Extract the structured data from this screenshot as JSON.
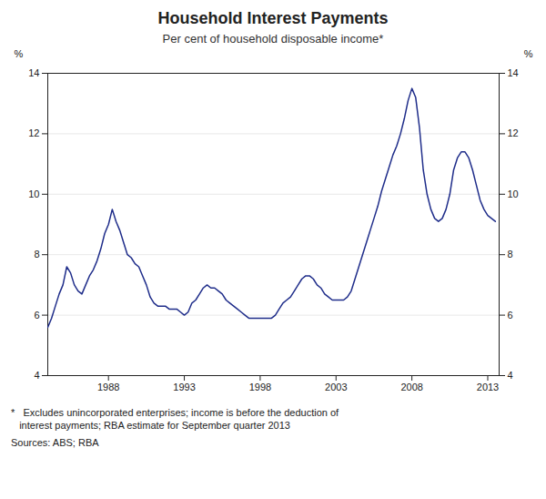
{
  "chart_data": {
    "type": "line",
    "title": "Household Interest Payments",
    "subtitle": "Per cent of household disposable income*",
    "ylabel": "%",
    "y2label": "%",
    "footnote": "*   Excludes unincorporated enterprises; income is before the deduction of\n   interest payments; RBA estimate for September quarter 2013",
    "sources": "Sources: ABS; RBA",
    "color": "#1f2d8a",
    "grid": "y",
    "xlim": [
      1984.0,
      2013.75
    ],
    "xticks": [
      1988,
      1993,
      1998,
      2003,
      2008,
      2013
    ],
    "ylim": [
      4,
      14
    ],
    "yticks": [
      4,
      6,
      8,
      10,
      12,
      14
    ],
    "y2lim": [
      4,
      14
    ],
    "y2ticks": [
      4,
      6,
      8,
      10,
      12,
      14
    ],
    "x": [
      1984.0,
      1984.25,
      1984.5,
      1984.75,
      1985.0,
      1985.25,
      1985.5,
      1985.75,
      1986.0,
      1986.25,
      1986.5,
      1986.75,
      1987.0,
      1987.25,
      1987.5,
      1987.75,
      1988.0,
      1988.25,
      1988.5,
      1988.75,
      1989.0,
      1989.25,
      1989.5,
      1989.75,
      1990.0,
      1990.25,
      1990.5,
      1990.75,
      1991.0,
      1991.25,
      1991.5,
      1991.75,
      1992.0,
      1992.25,
      1992.5,
      1992.75,
      1993.0,
      1993.25,
      1993.5,
      1993.75,
      1994.0,
      1994.25,
      1994.5,
      1994.75,
      1995.0,
      1995.25,
      1995.5,
      1995.75,
      1996.0,
      1996.25,
      1996.5,
      1996.75,
      1997.0,
      1997.25,
      1997.5,
      1997.75,
      1998.0,
      1998.25,
      1998.5,
      1998.75,
      1999.0,
      1999.25,
      1999.5,
      1999.75,
      2000.0,
      2000.25,
      2000.5,
      2000.75,
      2001.0,
      2001.25,
      2001.5,
      2001.75,
      2002.0,
      2002.25,
      2002.5,
      2002.75,
      2003.0,
      2003.25,
      2003.5,
      2003.75,
      2004.0,
      2004.25,
      2004.5,
      2004.75,
      2005.0,
      2005.25,
      2005.5,
      2005.75,
      2006.0,
      2006.25,
      2006.5,
      2006.75,
      2007.0,
      2007.25,
      2007.5,
      2007.75,
      2008.0,
      2008.25,
      2008.5,
      2008.75,
      2009.0,
      2009.25,
      2009.5,
      2009.75,
      2010.0,
      2010.25,
      2010.5,
      2010.75,
      2011.0,
      2011.25,
      2011.5,
      2011.75,
      2012.0,
      2012.25,
      2012.5,
      2012.75,
      2013.0,
      2013.25,
      2013.5
    ],
    "values": [
      5.6,
      5.9,
      6.3,
      6.7,
      7.0,
      7.6,
      7.4,
      7.0,
      6.8,
      6.7,
      7.0,
      7.3,
      7.5,
      7.8,
      8.2,
      8.7,
      9.0,
      9.5,
      9.1,
      8.8,
      8.4,
      8.0,
      7.9,
      7.7,
      7.6,
      7.3,
      7.0,
      6.6,
      6.4,
      6.3,
      6.3,
      6.3,
      6.2,
      6.2,
      6.2,
      6.1,
      6.0,
      6.1,
      6.4,
      6.5,
      6.7,
      6.9,
      7.0,
      6.9,
      6.9,
      6.8,
      6.7,
      6.5,
      6.4,
      6.3,
      6.2,
      6.1,
      6.0,
      5.9,
      5.9,
      5.9,
      5.9,
      5.9,
      5.9,
      5.9,
      6.0,
      6.2,
      6.4,
      6.5,
      6.6,
      6.8,
      7.0,
      7.2,
      7.3,
      7.3,
      7.2,
      7.0,
      6.9,
      6.7,
      6.6,
      6.5,
      6.5,
      6.5,
      6.5,
      6.6,
      6.8,
      7.2,
      7.6,
      8.0,
      8.4,
      8.8,
      9.2,
      9.6,
      10.1,
      10.5,
      10.9,
      11.3,
      11.6,
      12.0,
      12.5,
      13.1,
      13.5,
      13.2,
      12.2,
      10.8,
      10.0,
      9.5,
      9.2,
      9.1,
      9.2,
      9.5,
      10.0,
      10.8,
      11.2,
      11.4,
      11.4,
      11.2,
      10.8,
      10.3,
      9.8,
      9.5,
      9.3,
      9.2,
      9.1
    ]
  }
}
